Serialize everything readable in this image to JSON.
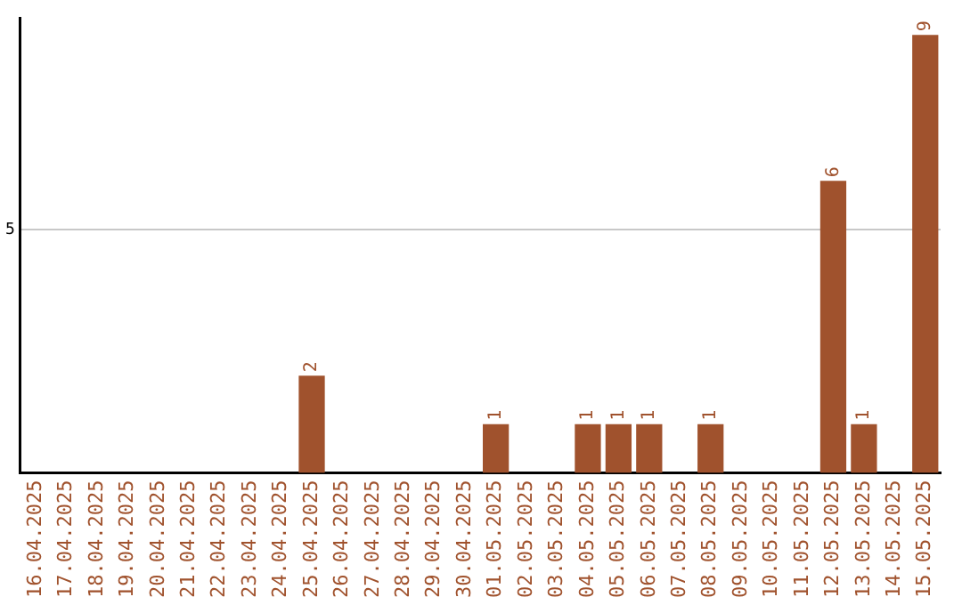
{
  "chart_data": {
    "type": "bar",
    "categories": [
      "16.04.2025",
      "17.04.2025",
      "18.04.2025",
      "19.04.2025",
      "20.04.2025",
      "21.04.2025",
      "22.04.2025",
      "23.04.2025",
      "24.04.2025",
      "25.04.2025",
      "26.04.2025",
      "27.04.2025",
      "28.04.2025",
      "29.04.2025",
      "30.04.2025",
      "01.05.2025",
      "02.05.2025",
      "03.05.2025",
      "04.05.2025",
      "05.05.2025",
      "06.05.2025",
      "07.05.2025",
      "08.05.2025",
      "09.05.2025",
      "10.05.2025",
      "11.05.2025",
      "12.05.2025",
      "13.05.2025",
      "14.05.2025",
      "15.05.2025"
    ],
    "values": [
      0,
      0,
      0,
      0,
      0,
      0,
      0,
      0,
      0,
      2,
      0,
      0,
      0,
      0,
      0,
      1,
      0,
      0,
      1,
      1,
      1,
      0,
      1,
      0,
      0,
      0,
      6,
      1,
      0,
      9
    ],
    "value_labels": [
      null,
      null,
      null,
      null,
      null,
      null,
      null,
      null,
      null,
      "2",
      null,
      null,
      null,
      null,
      null,
      "1",
      null,
      null,
      "1",
      "1",
      "1",
      null,
      "1",
      null,
      null,
      null,
      "6",
      "1",
      null,
      "9"
    ],
    "color": "#a0522d",
    "ylim": [
      0,
      9.35
    ],
    "yticks": [
      5
    ],
    "grid": "y",
    "legend": false
  }
}
